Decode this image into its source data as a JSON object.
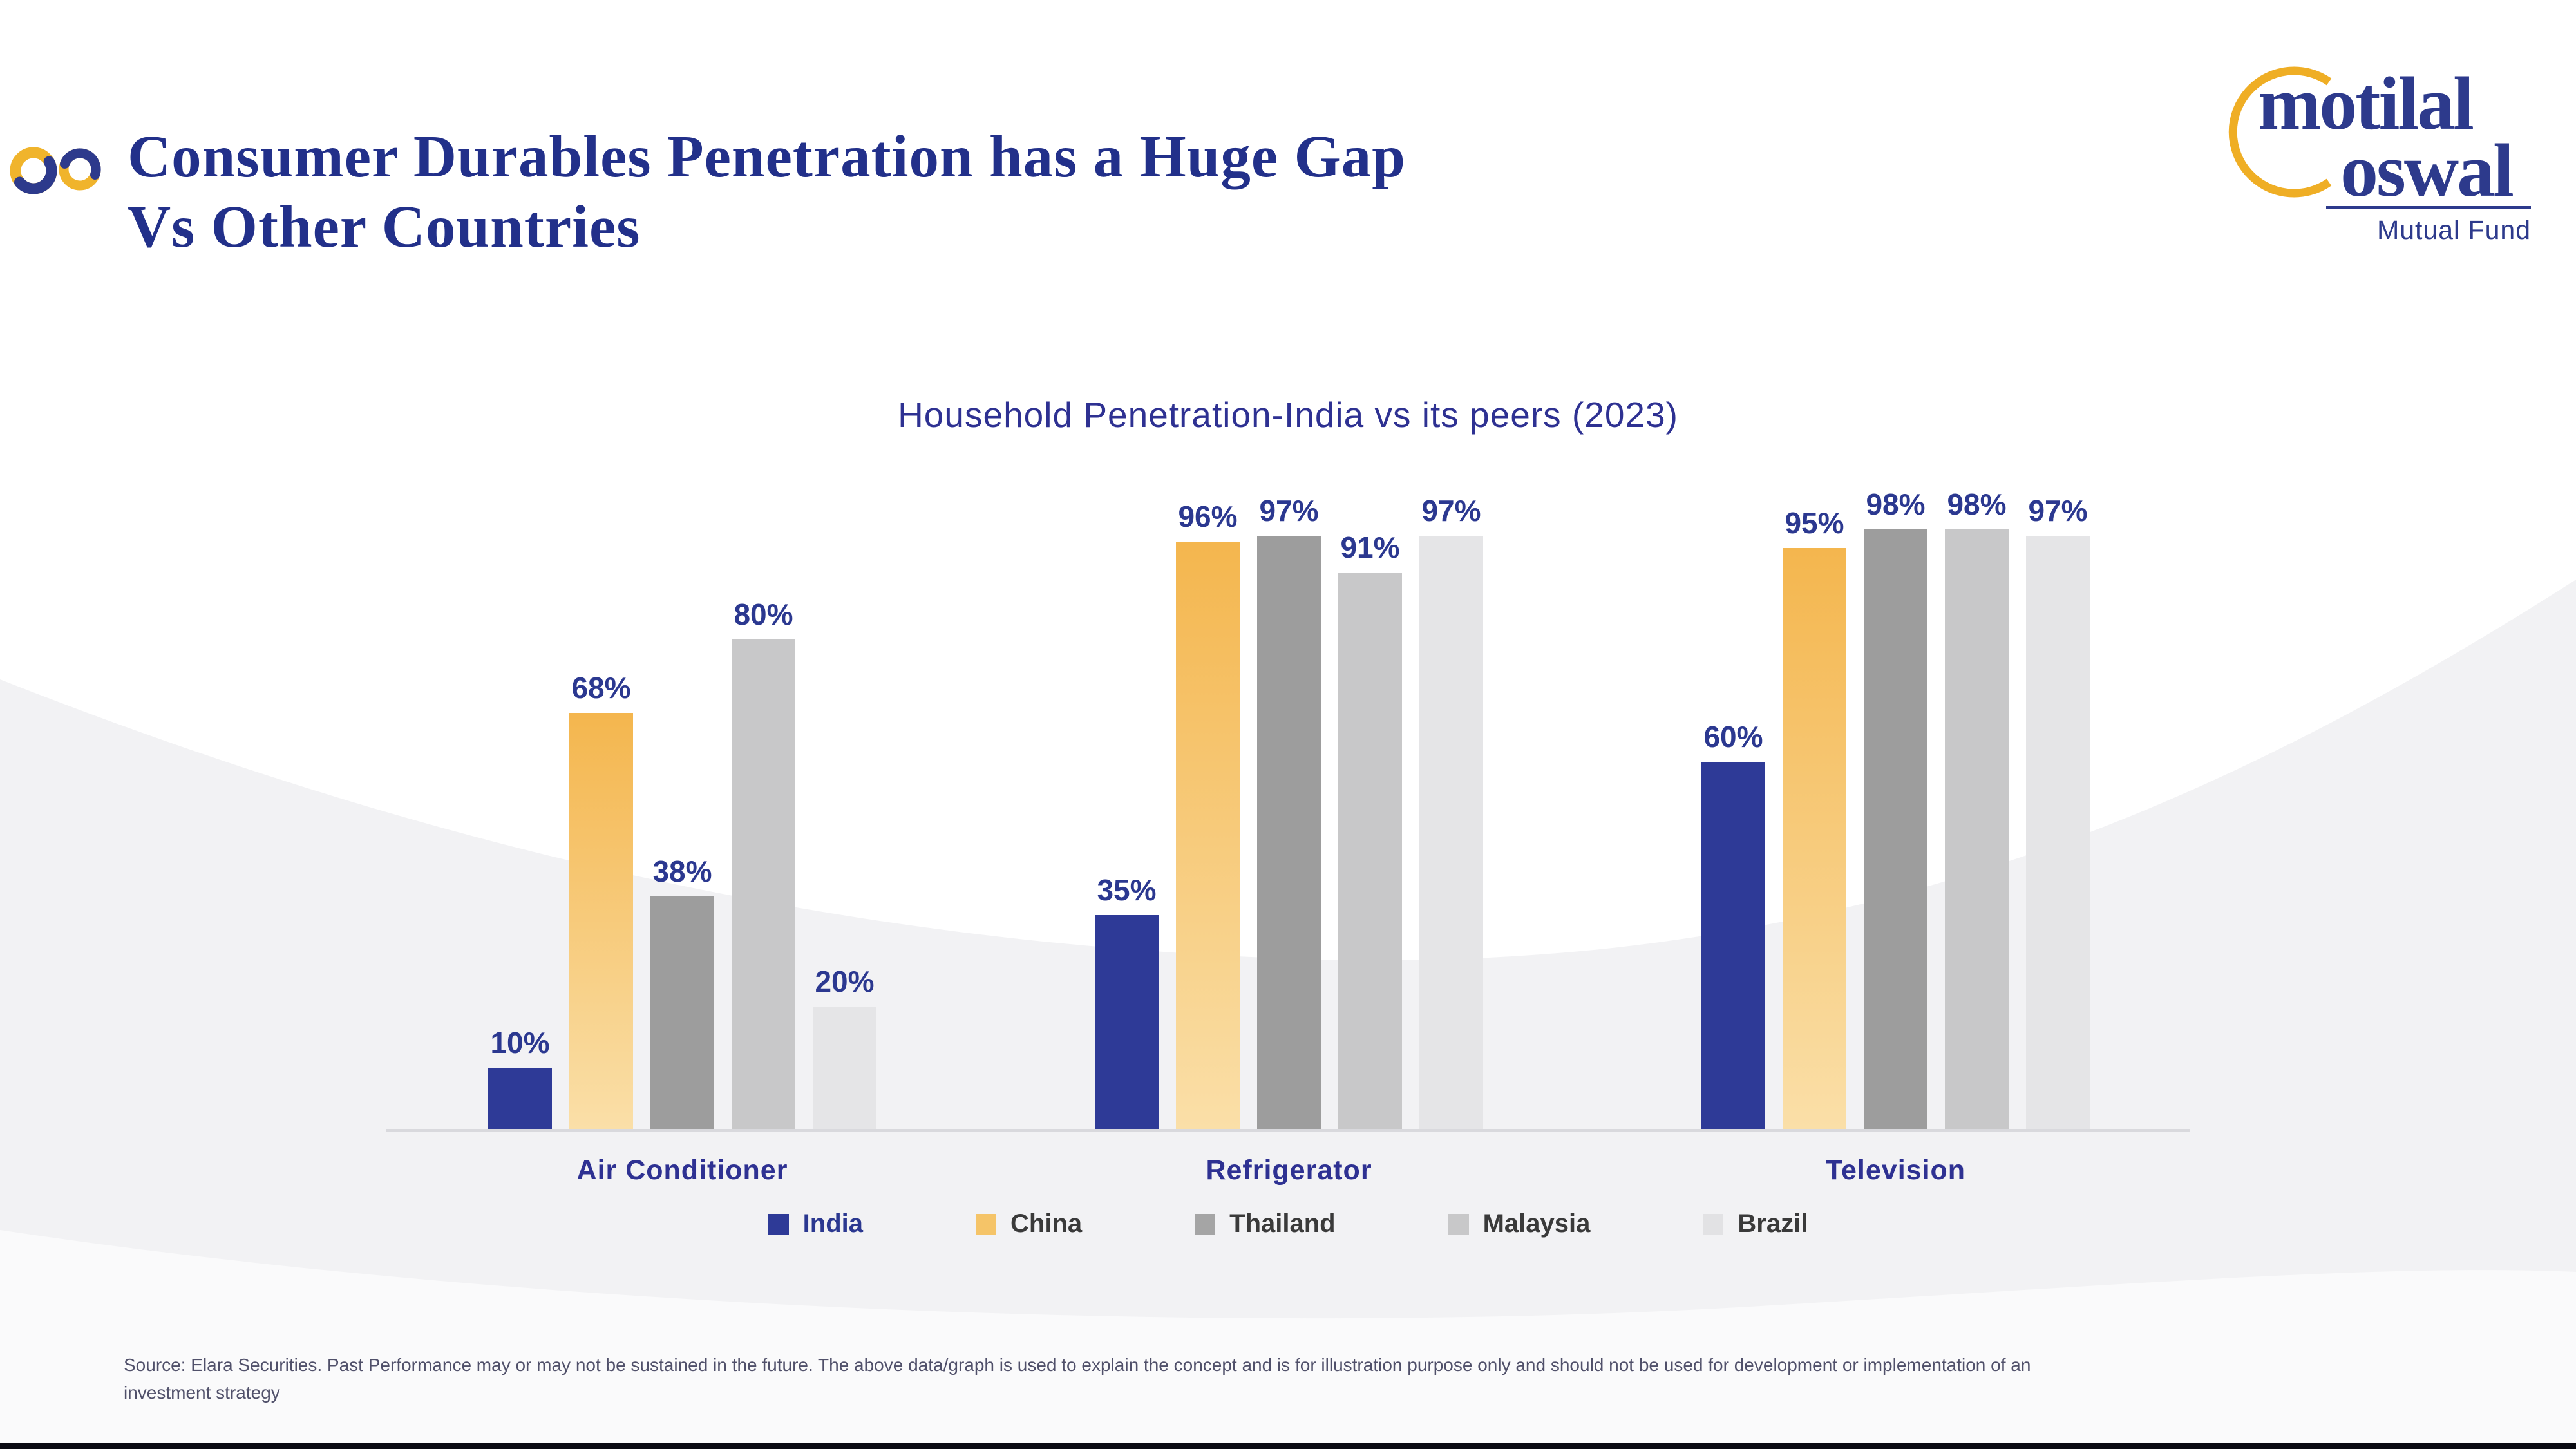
{
  "header": {
    "title_line1": "Consumer Durables Penetration has a Huge Gap",
    "title_line2": "Vs Other Countries"
  },
  "logo": {
    "word1": "motilal",
    "word2": "oswal",
    "tagline": "Mutual Fund",
    "arc_color": "#efae25",
    "text_color": "#2d3a8c"
  },
  "chart_data": {
    "type": "bar",
    "title": "Household Penetration-India vs its peers (2023)",
    "categories": [
      "Air Conditioner",
      "Refrigerator",
      "Television"
    ],
    "series": [
      {
        "name": "India",
        "values": [
          10,
          35,
          60
        ],
        "color": "#2e3a97"
      },
      {
        "name": "China",
        "values": [
          68,
          96,
          95
        ],
        "color": "#f5bc55",
        "gradient_top": "#f4b64e",
        "gradient_bottom": "#fadfa8"
      },
      {
        "name": "Thailand",
        "values": [
          38,
          97,
          98
        ],
        "color": "#9d9d9d"
      },
      {
        "name": "Malaysia",
        "values": [
          80,
          91,
          98
        ],
        "color": "#c8c8c9"
      },
      {
        "name": "Brazil",
        "values": [
          20,
          97,
          97
        ],
        "color": "#e5e5e7"
      }
    ],
    "value_suffix": "%",
    "ylim": [
      0,
      100
    ],
    "grid": false,
    "legend_position": "bottom",
    "value_label_color": "#2b3890",
    "axis_line_color": "#d9d9dd"
  },
  "legend": {
    "items": [
      {
        "label": "India",
        "swatch": "#2e3a97",
        "text_color": "#2b3890"
      },
      {
        "label": "China",
        "swatch": "#f5c468",
        "text_color": "#3a3a3a"
      },
      {
        "label": "Thailand",
        "swatch": "#a5a5a5",
        "text_color": "#3a3a3a"
      },
      {
        "label": "Malaysia",
        "swatch": "#c8c8c9",
        "text_color": "#3a3a3a"
      },
      {
        "label": "Brazil",
        "swatch": "#e2e2e4",
        "text_color": "#3a3a3a"
      }
    ]
  },
  "footer": {
    "source_line1": "Source: Elara Securities. Past Performance may or may not be sustained in the future. The above data/graph is used to explain the concept and is for illustration purpose only and should not be used for development or implementation of an",
    "source_line2": "investment strategy"
  }
}
